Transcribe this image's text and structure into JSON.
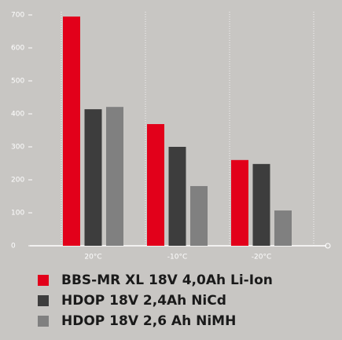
{
  "chart_data": {
    "type": "bar",
    "categories": [
      "20°C",
      "-10°C",
      "-20°C"
    ],
    "series": [
      {
        "name": "BBS-MR XL 18V 4,0Ah Li-Ion",
        "color": "#e2001a",
        "values": [
          695,
          369,
          260
        ]
      },
      {
        "name": "HDOP 18V 2,4Ah NiCd",
        "color": "#3d3d3d",
        "values": [
          414,
          300,
          248
        ]
      },
      {
        "name": "HDOP 18V 2,6 Ah NiMH",
        "color": "#808080",
        "values": [
          421,
          181,
          107
        ]
      }
    ],
    "ylim": [
      0,
      700
    ],
    "yticks": [
      0,
      100,
      200,
      300,
      400,
      500,
      600,
      700
    ]
  }
}
